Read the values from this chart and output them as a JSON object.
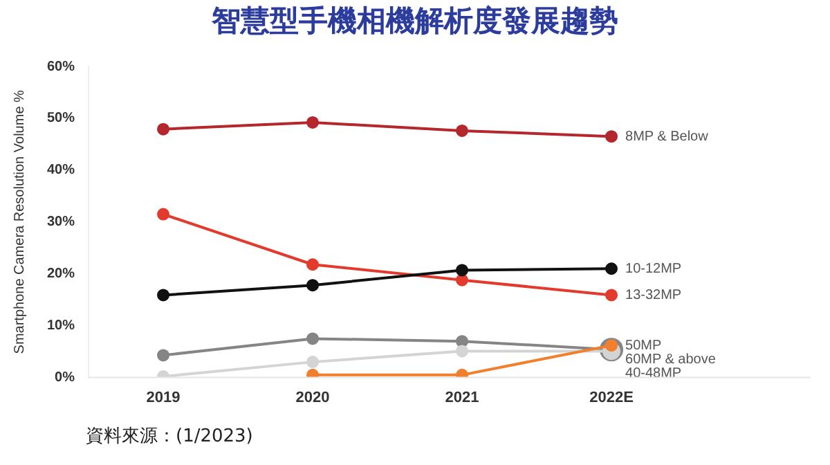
{
  "chart_data": {
    "type": "line",
    "title": "智慧型手機相機解析度發展趨勢",
    "ylabel": "Smartphone Camera Resolution Volume %",
    "categories": [
      "2019",
      "2020",
      "2021",
      "2022E"
    ],
    "series": [
      {
        "name": "8MP & Below",
        "color": "#b3272d",
        "values": [
          47.9,
          49.2,
          47.6,
          46.5
        ]
      },
      {
        "name": "10-12MP",
        "color": "#111111",
        "values": [
          15.9,
          17.8,
          20.7,
          21.0
        ]
      },
      {
        "name": "13-32MP",
        "color": "#e23b2e",
        "values": [
          31.5,
          21.8,
          18.8,
          15.9
        ]
      },
      {
        "name": "50MP",
        "color": "#f07f2e",
        "values": [
          null,
          0.5,
          0.5,
          6.2
        ]
      },
      {
        "name": "60MP & above",
        "color": "#d4d4d4",
        "values": [
          0.2,
          3.0,
          5.1,
          5.1
        ]
      },
      {
        "name": "40-48MP",
        "color": "#858585",
        "values": [
          4.3,
          7.5,
          7.0,
          5.4
        ]
      }
    ],
    "ylim": [
      0,
      60
    ],
    "yticks": [
      {
        "value": 0,
        "label": "0%"
      },
      {
        "value": 10,
        "label": "10%"
      },
      {
        "value": 20,
        "label": "20%"
      },
      {
        "value": 30,
        "label": "30%"
      },
      {
        "value": 40,
        "label": "40%"
      },
      {
        "value": 50,
        "label": "50%"
      },
      {
        "value": 60,
        "label": "60%"
      }
    ],
    "grid": false,
    "legend": false,
    "marker": "circle",
    "line_style": "solid",
    "annotations": [
      "資料來源：(1/2023)"
    ]
  }
}
